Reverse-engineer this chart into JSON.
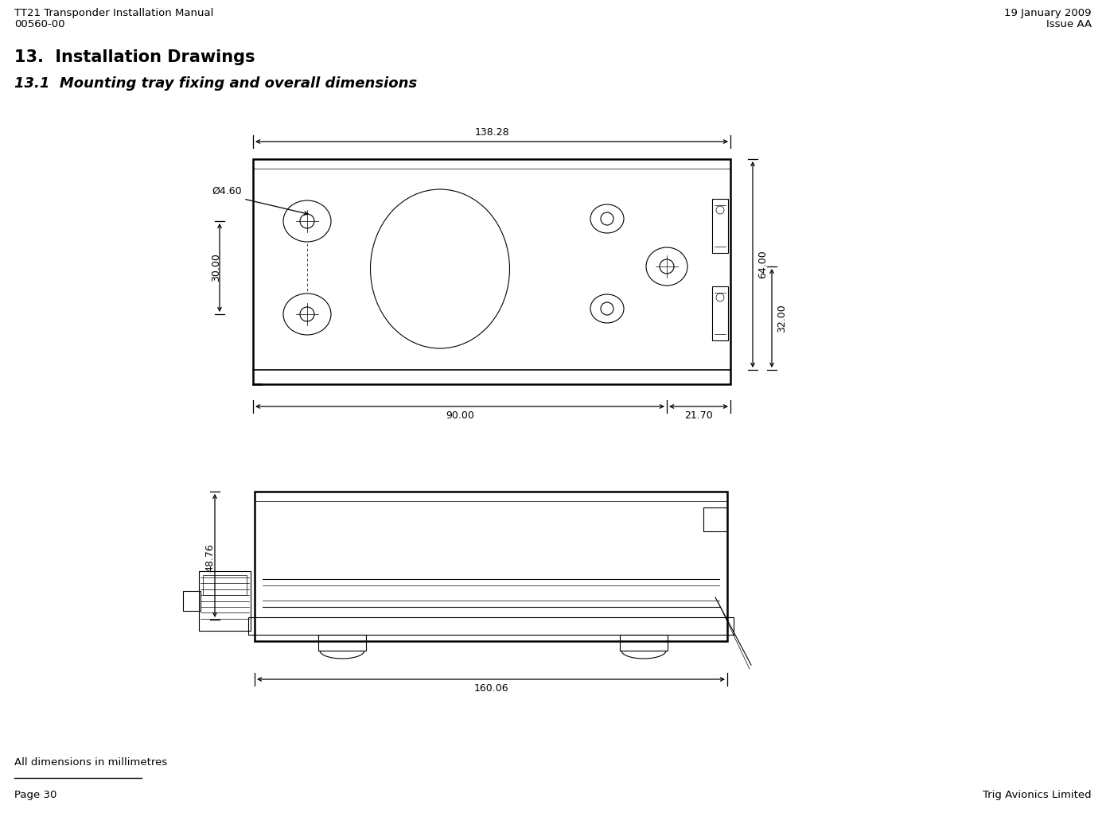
{
  "header_left_line1": "TT21 Transponder Installation Manual",
  "header_left_line2": "00560-00",
  "header_right_line1": "19 January 2009",
  "header_right_line2": "Issue AA",
  "section_title": "13.  Installation Drawings",
  "subsection_title": "13.1  Mounting tray fixing and overall dimensions",
  "footer_note": "All dimensions in millimetres",
  "footer_line_left": "Page 30",
  "footer_line_right": "Trig Avionics Limited",
  "bg_color": "#ffffff",
  "dim_138_28": "138.28",
  "dim_30_00": "30.00",
  "dim_64_00": "64.00",
  "dim_32_00": "32.00",
  "dim_90_00": "90.00",
  "dim_21_70": "21.70",
  "dim_dia_4_60": "Ø4.60",
  "dim_48_76": "48.76",
  "dim_160_06": "160.06"
}
